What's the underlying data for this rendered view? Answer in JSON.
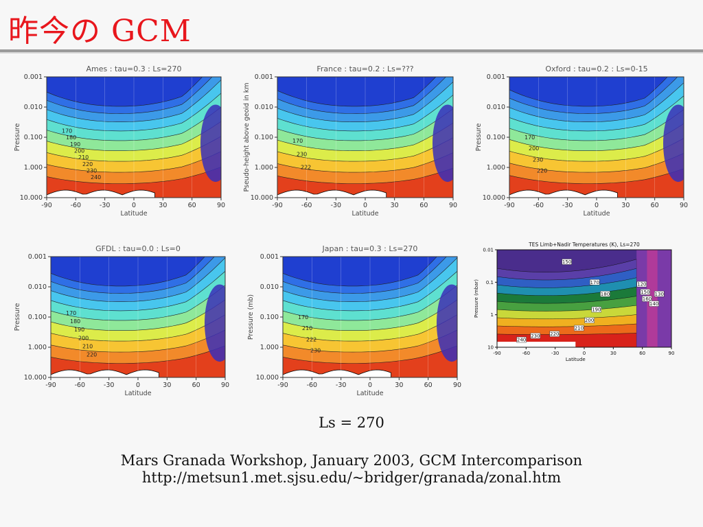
{
  "slide": {
    "title": "昨今の GCM",
    "ls_label": "Ls = 270",
    "footer_line1": "Mars Granada Workshop, January 2003, GCM Intercomparison",
    "footer_line2": "http://metsun1.met.sjsu.edu/~bridger/granada/zonal.htm"
  },
  "panels": [
    {
      "title": "Ames : tau=0.3 : Ls=270",
      "ylabel": "Pressure",
      "xlabel": "Latitude",
      "yticks": [
        "0.001",
        "0.010",
        "0.100",
        "1.000",
        "10.000"
      ],
      "xticks": [
        "-90",
        "-60",
        "-30",
        "0",
        "30",
        "60",
        "90"
      ],
      "contour_labels": [
        "170",
        "180",
        "190",
        "200",
        "210",
        "220",
        "230",
        "240"
      ]
    },
    {
      "title": "France : tau=0.2 : Ls=???",
      "ylabel": "Pseudo-height above geoid in km",
      "xlabel": "Latitude",
      "yticks": [
        "0.001",
        "0.010",
        "0.100",
        "1.000",
        "10.000"
      ],
      "xticks": [
        "-90",
        "-60",
        "-30",
        "0",
        "30",
        "60",
        "90"
      ],
      "contour_labels": [
        "170",
        "230",
        "222"
      ]
    },
    {
      "title": "Oxford : tau=0.2 : Ls=0-15",
      "ylabel": "Pressure",
      "xlabel": "Latitude",
      "yticks": [
        "0.001",
        "0.010",
        "0.100",
        "1.000",
        "10.000"
      ],
      "xticks": [
        "-90",
        "-60",
        "-30",
        "0",
        "30",
        "60",
        "90"
      ],
      "contour_labels": [
        "170",
        "200",
        "230",
        "220"
      ]
    },
    {
      "title": "GFDL : tau=0.0 : Ls=0",
      "ylabel": "Pressure",
      "xlabel": "Latitude",
      "yticks": [
        "0.001",
        "0.010",
        "0.100",
        "1.000",
        "10.000"
      ],
      "xticks": [
        "-90",
        "-60",
        "-30",
        "0",
        "30",
        "60",
        "90"
      ],
      "contour_labels": [
        "170",
        "180",
        "190",
        "200",
        "210",
        "220"
      ]
    },
    {
      "title": "Japan : tau=0.3 : Ls=270",
      "ylabel": "Pressure (mb)",
      "xlabel": "Latitude",
      "yticks": [
        "0.001",
        "0.010",
        "0.100",
        "1.000",
        "10.000"
      ],
      "xticks": [
        "-90",
        "-60",
        "-30",
        "0",
        "30",
        "60",
        "90"
      ],
      "contour_labels": [
        "170",
        "210",
        "222",
        "230"
      ]
    }
  ],
  "tes_panel": {
    "title": "TES Limb+Nadir Temperatures (K), Ls=270",
    "ylabel": "Pressure (mbar)",
    "xlabel": "Latitude",
    "yticks": [
      "0.01",
      "0.1",
      "1",
      "10"
    ],
    "xticks": [
      "-90",
      "-60",
      "-30",
      "0",
      "30",
      "60",
      "90"
    ],
    "contour_labels": [
      "150",
      "170",
      "180",
      "190",
      "200",
      "210",
      "220",
      "230",
      "240",
      "120",
      "150",
      "160",
      "130",
      "140"
    ]
  }
}
